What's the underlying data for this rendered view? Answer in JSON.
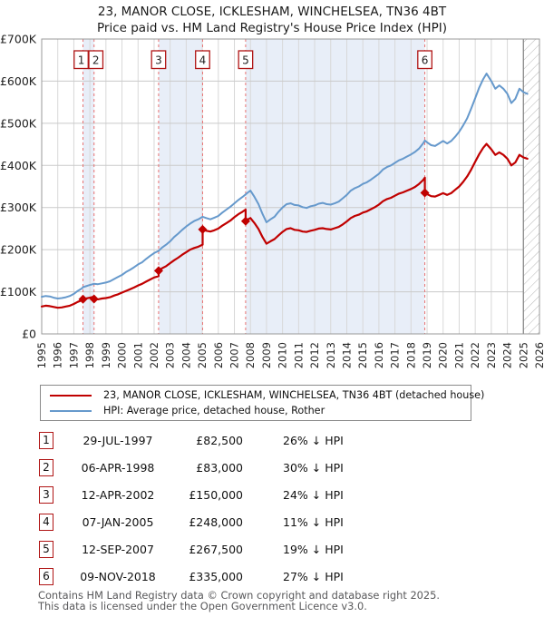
{
  "title": "23, MANOR CLOSE, ICKLESHAM, WINCHELSEA, TN36 4BT",
  "subtitle": "Price paid vs. HM Land Registry's House Price Index (HPI)",
  "legend": [
    {
      "label": "23, MANOR CLOSE, ICKLESHAM, WINCHELSEA, TN36 4BT (detached house)",
      "color": "#c00000"
    },
    {
      "label": "HPI: Average price, detached house, Rother",
      "color": "#6699cc"
    }
  ],
  "table": {
    "rows": [
      {
        "num": "1",
        "date": "29-JUL-1997",
        "price": "£82,500",
        "pct": "26% ↓ HPI"
      },
      {
        "num": "2",
        "date": "06-APR-1998",
        "price": "£83,000",
        "pct": "30% ↓ HPI"
      },
      {
        "num": "3",
        "date": "12-APR-2002",
        "price": "£150,000",
        "pct": "24% ↓ HPI"
      },
      {
        "num": "4",
        "date": "07-JAN-2005",
        "price": "£248,000",
        "pct": "11% ↓ HPI"
      },
      {
        "num": "5",
        "date": "12-SEP-2007",
        "price": "£267,500",
        "pct": "19% ↓ HPI"
      },
      {
        "num": "6",
        "date": "09-NOV-2018",
        "price": "£335,000",
        "pct": "27% ↓ HPI"
      }
    ]
  },
  "footer": {
    "line1": "Contains HM Land Registry data © Crown copyright and database right 2025.",
    "line2": "This data is licensed under the Open Government Licence v3.0."
  },
  "colors": {
    "property_line": "#c00000",
    "hpi_line": "#6699cc",
    "band": "#e8eef8",
    "sale_dash": "#e87272",
    "grid_v": "#d8d8d8",
    "grid_h": "#cacaca",
    "border": "#999999",
    "box_border": "#b01515",
    "hatch_line": "#bcbcbc",
    "hatch_edge": "#8a8a8a",
    "tick_text": "#222222"
  },
  "chart_data": {
    "type": "line",
    "title": "Price paid vs. HM Land Registry's House Price Index (HPI)",
    "x_range": [
      1995,
      2026
    ],
    "y_max_k": 700,
    "units": "GBP thousands",
    "grid": true,
    "legend_position": "below",
    "y_tick_labels": [
      "£0",
      "£100K",
      "£200K",
      "£300K",
      "£400K",
      "£500K",
      "£600K",
      "£700K"
    ],
    "hatch_start": 2025,
    "bands": [
      [
        1997.57,
        1998.26
      ],
      [
        2002.28,
        2005.02
      ],
      [
        2007.7,
        2018.86
      ]
    ],
    "sales": [
      {
        "num": "1",
        "year": 1997.57,
        "price_k": 82.5,
        "date": "29-JUL-1997",
        "box_dx": -2
      },
      {
        "num": "2",
        "year": 1998.26,
        "price_k": 83,
        "date": "06-APR-1998",
        "box_dx": 2
      },
      {
        "num": "3",
        "year": 2002.28,
        "price_k": 150,
        "date": "12-APR-2002",
        "box_dx": 0
      },
      {
        "num": "4",
        "year": 2005.02,
        "price_k": 248,
        "date": "07-JAN-2005",
        "box_dx": 0
      },
      {
        "num": "5",
        "year": 2007.7,
        "price_k": 267.5,
        "date": "12-SEP-2007",
        "box_dx": 0
      },
      {
        "num": "6",
        "year": 2018.86,
        "price_k": 335,
        "date": "09-NOV-2018",
        "box_dx": 0
      }
    ],
    "series": [
      {
        "name": "23, MANOR CLOSE, ICKLESHAM, WINCHELSEA, TN36 4BT (detached house)",
        "color": "#c00000",
        "width": 2.2,
        "points": [
          [
            1995,
            65
          ],
          [
            1995.25,
            67
          ],
          [
            1995.5,
            66
          ],
          [
            1995.75,
            64
          ],
          [
            1996,
            62
          ],
          [
            1996.25,
            63
          ],
          [
            1996.5,
            65
          ],
          [
            1996.75,
            67
          ],
          [
            1997,
            71
          ],
          [
            1997.25,
            76
          ],
          [
            1997.5,
            80
          ],
          [
            1997.57,
            82.5
          ],
          [
            1997.75,
            84
          ],
          [
            1998,
            86
          ],
          [
            1998.26,
            88.4
          ],
          [
            1998.26,
            83
          ],
          [
            1998.5,
            82
          ],
          [
            1998.75,
            84
          ],
          [
            1999,
            85
          ],
          [
            1999.25,
            87
          ],
          [
            1999.5,
            91
          ],
          [
            1999.75,
            94
          ],
          [
            2000,
            98
          ],
          [
            2000.25,
            102
          ],
          [
            2000.5,
            106
          ],
          [
            2000.75,
            110
          ],
          [
            2001,
            115
          ],
          [
            2001.25,
            119
          ],
          [
            2001.5,
            124
          ],
          [
            2001.75,
            129
          ],
          [
            2002,
            134
          ],
          [
            2002.28,
            137
          ],
          [
            2002.28,
            150
          ],
          [
            2002.5,
            156
          ],
          [
            2002.75,
            161
          ],
          [
            2003,
            168
          ],
          [
            2003.25,
            175
          ],
          [
            2003.5,
            181
          ],
          [
            2003.75,
            188
          ],
          [
            2004,
            194
          ],
          [
            2004.25,
            200
          ],
          [
            2004.5,
            204
          ],
          [
            2004.75,
            207
          ],
          [
            2005.02,
            212
          ],
          [
            2005.02,
            248
          ],
          [
            2005.25,
            245
          ],
          [
            2005.5,
            243
          ],
          [
            2005.75,
            246
          ],
          [
            2006,
            250
          ],
          [
            2006.25,
            257
          ],
          [
            2006.5,
            263
          ],
          [
            2006.75,
            269
          ],
          [
            2007,
            277
          ],
          [
            2007.25,
            284
          ],
          [
            2007.5,
            290
          ],
          [
            2007.7,
            295
          ],
          [
            2007.7,
            267.5
          ],
          [
            2007.85,
            272
          ],
          [
            2008,
            275
          ],
          [
            2008.25,
            263
          ],
          [
            2008.5,
            249
          ],
          [
            2008.75,
            230
          ],
          [
            2009,
            214
          ],
          [
            2009.25,
            220
          ],
          [
            2009.5,
            225
          ],
          [
            2009.75,
            234
          ],
          [
            2010,
            242
          ],
          [
            2010.25,
            249
          ],
          [
            2010.5,
            251
          ],
          [
            2010.75,
            247
          ],
          [
            2011,
            246
          ],
          [
            2011.25,
            243
          ],
          [
            2011.5,
            242
          ],
          [
            2011.75,
            245
          ],
          [
            2012,
            247
          ],
          [
            2012.25,
            250
          ],
          [
            2012.5,
            251
          ],
          [
            2012.75,
            249
          ],
          [
            2013,
            248
          ],
          [
            2013.25,
            251
          ],
          [
            2013.5,
            254
          ],
          [
            2013.75,
            260
          ],
          [
            2014,
            267
          ],
          [
            2014.25,
            275
          ],
          [
            2014.5,
            280
          ],
          [
            2014.75,
            283
          ],
          [
            2015,
            288
          ],
          [
            2015.25,
            291
          ],
          [
            2015.5,
            296
          ],
          [
            2015.75,
            301
          ],
          [
            2016,
            307
          ],
          [
            2016.25,
            315
          ],
          [
            2016.5,
            320
          ],
          [
            2016.75,
            323
          ],
          [
            2017,
            328
          ],
          [
            2017.25,
            333
          ],
          [
            2017.5,
            336
          ],
          [
            2017.75,
            340
          ],
          [
            2018,
            344
          ],
          [
            2018.25,
            349
          ],
          [
            2018.5,
            356
          ],
          [
            2018.75,
            365
          ],
          [
            2018.86,
            371
          ],
          [
            2018.86,
            335
          ],
          [
            2019,
            332
          ],
          [
            2019.25,
            327
          ],
          [
            2019.5,
            326
          ],
          [
            2019.75,
            330
          ],
          [
            2020,
            334
          ],
          [
            2020.25,
            330
          ],
          [
            2020.5,
            334
          ],
          [
            2020.75,
            342
          ],
          [
            2021,
            350
          ],
          [
            2021.25,
            361
          ],
          [
            2021.5,
            374
          ],
          [
            2021.75,
            390
          ],
          [
            2022,
            409
          ],
          [
            2022.25,
            427
          ],
          [
            2022.5,
            442
          ],
          [
            2022.7,
            451
          ],
          [
            2023,
            438
          ],
          [
            2023.25,
            425
          ],
          [
            2023.5,
            431
          ],
          [
            2023.75,
            425
          ],
          [
            2024,
            416
          ],
          [
            2024.25,
            400
          ],
          [
            2024.5,
            407
          ],
          [
            2024.75,
            425
          ],
          [
            2025,
            419
          ],
          [
            2025.25,
            416
          ]
        ]
      },
      {
        "name": "HPI: Average price, detached house, Rother",
        "color": "#6699cc",
        "width": 2,
        "points": [
          [
            1995,
            88
          ],
          [
            1995.25,
            90
          ],
          [
            1995.5,
            89
          ],
          [
            1995.75,
            86
          ],
          [
            1996,
            84
          ],
          [
            1996.25,
            85
          ],
          [
            1996.5,
            87
          ],
          [
            1996.75,
            90
          ],
          [
            1997,
            95
          ],
          [
            1997.25,
            102
          ],
          [
            1997.5,
            108
          ],
          [
            1997.57,
            111
          ],
          [
            1997.75,
            113
          ],
          [
            1998,
            116
          ],
          [
            1998.26,
            119
          ],
          [
            1998.5,
            118
          ],
          [
            1998.75,
            120
          ],
          [
            1999,
            122
          ],
          [
            1999.25,
            125
          ],
          [
            1999.5,
            130
          ],
          [
            1999.75,
            135
          ],
          [
            2000,
            140
          ],
          [
            2000.25,
            147
          ],
          [
            2000.5,
            152
          ],
          [
            2000.75,
            158
          ],
          [
            2001,
            165
          ],
          [
            2001.25,
            170
          ],
          [
            2001.5,
            178
          ],
          [
            2001.75,
            185
          ],
          [
            2002,
            192
          ],
          [
            2002.28,
            197
          ],
          [
            2002.5,
            205
          ],
          [
            2002.75,
            212
          ],
          [
            2003,
            220
          ],
          [
            2003.25,
            230
          ],
          [
            2003.5,
            238
          ],
          [
            2003.75,
            247
          ],
          [
            2004,
            255
          ],
          [
            2004.25,
            262
          ],
          [
            2004.5,
            268
          ],
          [
            2004.75,
            272
          ],
          [
            2005.02,
            278
          ],
          [
            2005.25,
            275
          ],
          [
            2005.5,
            272
          ],
          [
            2005.75,
            276
          ],
          [
            2006,
            280
          ],
          [
            2006.25,
            288
          ],
          [
            2006.5,
            295
          ],
          [
            2006.75,
            302
          ],
          [
            2007,
            310
          ],
          [
            2007.25,
            318
          ],
          [
            2007.5,
            325
          ],
          [
            2007.7,
            331
          ],
          [
            2007.85,
            336
          ],
          [
            2008,
            340
          ],
          [
            2008.25,
            325
          ],
          [
            2008.5,
            308
          ],
          [
            2008.75,
            285
          ],
          [
            2009,
            265
          ],
          [
            2009.25,
            272
          ],
          [
            2009.5,
            278
          ],
          [
            2009.75,
            290
          ],
          [
            2010,
            300
          ],
          [
            2010.25,
            308
          ],
          [
            2010.5,
            310
          ],
          [
            2010.75,
            306
          ],
          [
            2011,
            305
          ],
          [
            2011.25,
            301
          ],
          [
            2011.5,
            299
          ],
          [
            2011.75,
            303
          ],
          [
            2012,
            305
          ],
          [
            2012.25,
            309
          ],
          [
            2012.5,
            311
          ],
          [
            2012.75,
            308
          ],
          [
            2013,
            307
          ],
          [
            2013.25,
            310
          ],
          [
            2013.5,
            314
          ],
          [
            2013.75,
            322
          ],
          [
            2014,
            330
          ],
          [
            2014.25,
            340
          ],
          [
            2014.5,
            346
          ],
          [
            2014.75,
            350
          ],
          [
            2015,
            356
          ],
          [
            2015.25,
            360
          ],
          [
            2015.5,
            366
          ],
          [
            2015.75,
            373
          ],
          [
            2016,
            380
          ],
          [
            2016.25,
            390
          ],
          [
            2016.5,
            396
          ],
          [
            2016.75,
            400
          ],
          [
            2017,
            406
          ],
          [
            2017.25,
            412
          ],
          [
            2017.5,
            416
          ],
          [
            2017.75,
            421
          ],
          [
            2018,
            426
          ],
          [
            2018.25,
            432
          ],
          [
            2018.5,
            440
          ],
          [
            2018.75,
            452
          ],
          [
            2018.86,
            459
          ],
          [
            2019,
            455
          ],
          [
            2019.25,
            448
          ],
          [
            2019.5,
            446
          ],
          [
            2019.75,
            452
          ],
          [
            2020,
            458
          ],
          [
            2020.25,
            452
          ],
          [
            2020.5,
            458
          ],
          [
            2020.75,
            468
          ],
          [
            2021,
            480
          ],
          [
            2021.25,
            495
          ],
          [
            2021.5,
            512
          ],
          [
            2021.75,
            535
          ],
          [
            2022,
            560
          ],
          [
            2022.25,
            585
          ],
          [
            2022.5,
            605
          ],
          [
            2022.7,
            618
          ],
          [
            2023,
            600
          ],
          [
            2023.25,
            582
          ],
          [
            2023.5,
            590
          ],
          [
            2023.75,
            582
          ],
          [
            2024,
            570
          ],
          [
            2024.25,
            548
          ],
          [
            2024.5,
            558
          ],
          [
            2024.75,
            582
          ],
          [
            2025,
            574
          ],
          [
            2025.25,
            570
          ]
        ]
      }
    ]
  }
}
